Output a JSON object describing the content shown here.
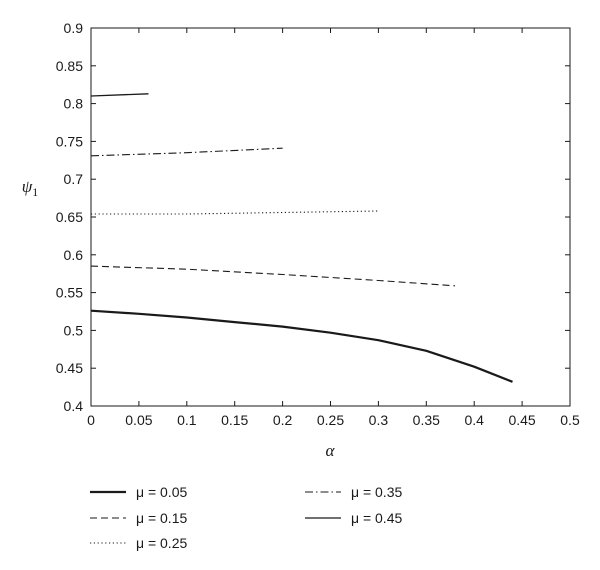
{
  "chart_data": {
    "type": "line",
    "xlabel": "α",
    "ylabel": "ψ",
    "ylabel_subscript": "1",
    "xlim": [
      0,
      0.5
    ],
    "ylim": [
      0.4,
      0.9
    ],
    "xticks": [
      "0",
      "0.05",
      "0.1",
      "0.15",
      "0.2",
      "0.25",
      "0.3",
      "0.35",
      "0.4",
      "0.45",
      "0.5"
    ],
    "yticks": [
      "0.4",
      "0.45",
      "0.5",
      "0.55",
      "0.6",
      "0.65",
      "0.7",
      "0.75",
      "0.8",
      "0.85",
      "0.9"
    ],
    "grid": false,
    "legend_position": "bottom",
    "series": [
      {
        "name": "μ = 0.05",
        "style": "solid-thick",
        "x": [
          0,
          0.05,
          0.1,
          0.15,
          0.2,
          0.25,
          0.3,
          0.35,
          0.4,
          0.44
        ],
        "y": [
          0.526,
          0.522,
          0.517,
          0.511,
          0.505,
          0.497,
          0.487,
          0.473,
          0.452,
          0.432
        ]
      },
      {
        "name": "μ = 0.15",
        "style": "dashed",
        "x": [
          0,
          0.1,
          0.2,
          0.3,
          0.38
        ],
        "y": [
          0.585,
          0.581,
          0.574,
          0.566,
          0.559
        ]
      },
      {
        "name": "μ = 0.25",
        "style": "dotted",
        "x": [
          0,
          0.1,
          0.2,
          0.3
        ],
        "y": [
          0.654,
          0.654,
          0.656,
          0.658
        ]
      },
      {
        "name": "μ = 0.35",
        "style": "dashdot",
        "x": [
          0,
          0.1,
          0.2
        ],
        "y": [
          0.731,
          0.735,
          0.741
        ]
      },
      {
        "name": "μ = 0.45",
        "style": "solid-thin",
        "x": [
          0,
          0.06
        ],
        "y": [
          0.81,
          0.813
        ]
      }
    ],
    "colors": {
      "line": "#1a1a1a",
      "axes": "#1a1a1a",
      "background": "#ffffff"
    }
  }
}
